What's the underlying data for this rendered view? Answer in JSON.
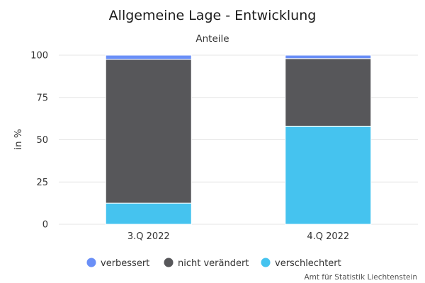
{
  "chart_data": {
    "type": "bar",
    "stacked": true,
    "title": "Allgemeine Lage - Entwicklung",
    "subtitle": "Anteile",
    "ylabel": "in %",
    "xlabel": "",
    "ylim": [
      0,
      100
    ],
    "yticks": [
      0,
      25,
      50,
      75,
      100
    ],
    "categories": [
      "3.Q 2022",
      "4.Q 2022"
    ],
    "series": [
      {
        "name": "verschlechtert",
        "values": [
          12.5,
          58.0
        ],
        "color": "#45c3ef"
      },
      {
        "name": "nicht verändert",
        "values": [
          85.0,
          40.0
        ],
        "color": "#57575a"
      },
      {
        "name": "verbessert",
        "values": [
          2.5,
          2.0
        ],
        "color": "#6a8ff7"
      }
    ],
    "legend": {
      "placement": "bottom",
      "order": [
        "verbessert",
        "nicht verändert",
        "verschlechtert"
      ]
    },
    "grid": true
  },
  "credit": "Amt für Statistik Liechtenstein"
}
